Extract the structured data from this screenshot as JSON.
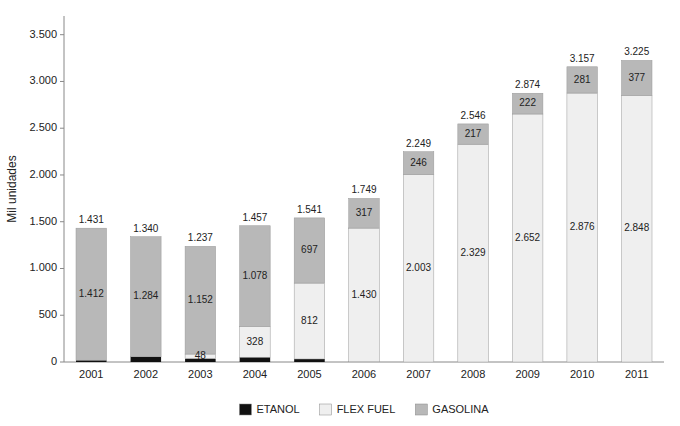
{
  "chart_data": {
    "type": "bar",
    "stacked": true,
    "ylabel": "Mil unidades",
    "categories": [
      "2001",
      "2002",
      "2003",
      "2004",
      "2005",
      "2006",
      "2007",
      "2008",
      "2009",
      "2010",
      "2011"
    ],
    "series": [
      {
        "name": "ETANOL",
        "color": "#111111",
        "values": [
          19,
          56,
          37,
          51,
          32,
          2,
          0,
          0,
          0,
          0,
          0
        ],
        "value_labels": [
          null,
          null,
          null,
          null,
          null,
          null,
          null,
          null,
          null,
          null,
          null
        ]
      },
      {
        "name": "FLEX FUEL",
        "color": "#efefef",
        "values": [
          0,
          0,
          48,
          328,
          812,
          1430,
          2003,
          2329,
          2652,
          2876,
          2848
        ],
        "value_labels": [
          null,
          null,
          "48",
          "328",
          "812",
          "1.430",
          "2.003",
          "2.329",
          "2.652",
          "2.876",
          "2.848"
        ]
      },
      {
        "name": "GASOLINA",
        "color": "#b8b8b8",
        "values": [
          1412,
          1284,
          1152,
          1078,
          697,
          317,
          246,
          217,
          222,
          281,
          377
        ],
        "value_labels": [
          "1.412",
          "1.284",
          "1.152",
          "1.078",
          "697",
          "317",
          "246",
          "217",
          "222",
          "281",
          "377"
        ]
      }
    ],
    "totals": [
      1431,
      1340,
      1237,
      1457,
      1541,
      1749,
      2249,
      2546,
      2874,
      3157,
      3225
    ],
    "total_labels": [
      "1.431",
      "1.340",
      "1.237",
      "1.457",
      "1.541",
      "1.749",
      "2.249",
      "2.546",
      "2.874",
      "3.157",
      "3.225"
    ],
    "ylim": [
      0,
      3700
    ],
    "yticks": [
      0,
      500,
      {
        "value": 1000,
        "label": "1.000"
      },
      {
        "value": 1500,
        "label": "1.500"
      },
      {
        "value": 2000,
        "label": "2.000"
      },
      {
        "value": 2500,
        "label": "2.500"
      },
      {
        "value": 3000,
        "label": "3.000"
      },
      {
        "value": 3500,
        "label": "3.500"
      }
    ],
    "data_labels": true,
    "grid": false,
    "legend": "bottom"
  }
}
